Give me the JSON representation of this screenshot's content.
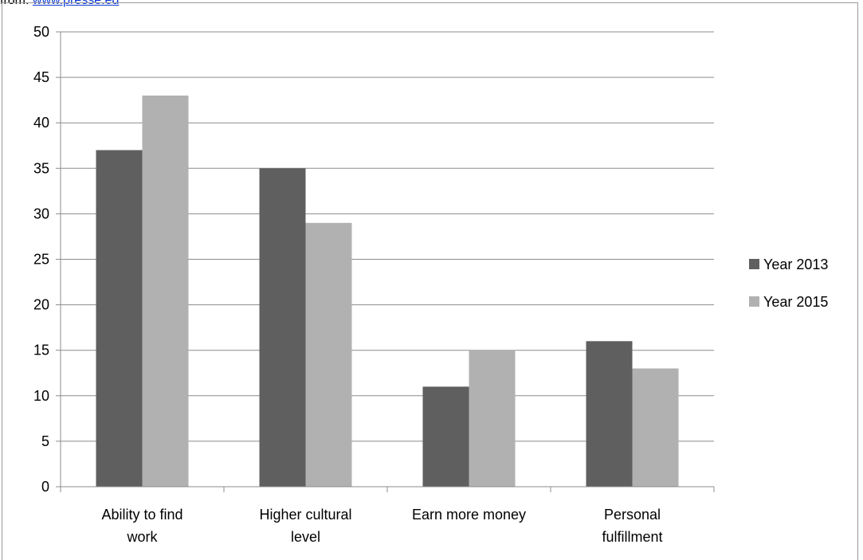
{
  "source": {
    "prefix": "from: ",
    "link_text": "www.presse.ed"
  },
  "chart_data": {
    "type": "bar",
    "title": "",
    "xlabel": "",
    "ylabel": "",
    "categories": [
      [
        "Ability to find",
        "work"
      ],
      [
        "Higher cultural",
        "level"
      ],
      [
        "Earn more money"
      ],
      [
        "Personal",
        "fulfillment"
      ]
    ],
    "series": [
      {
        "name": "Year 2013",
        "values": [
          37,
          35,
          11,
          16
        ],
        "color": "#5f5f5f"
      },
      {
        "name": "Year 2015",
        "values": [
          43,
          29,
          15,
          13
        ],
        "color": "#b1b1b1"
      }
    ],
    "ylim": [
      0,
      50
    ],
    "yticks": [
      0,
      5,
      10,
      15,
      20,
      25,
      30,
      35,
      40,
      45,
      50
    ],
    "grid": true,
    "legend": "right",
    "gridline_color": "#8c8c8c"
  }
}
